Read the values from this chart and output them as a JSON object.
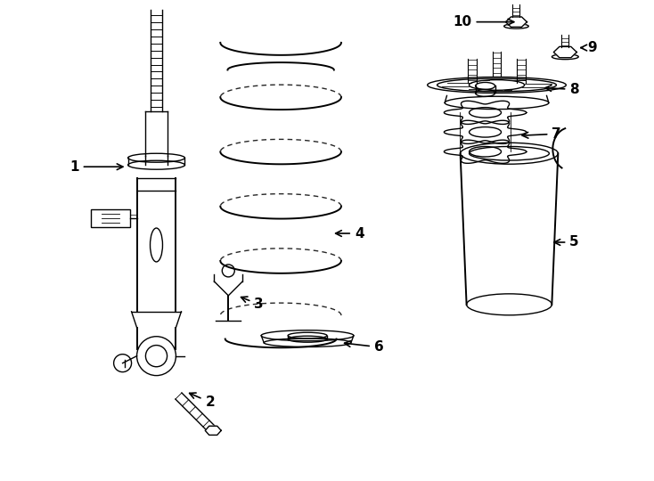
{
  "bg_color": "#ffffff",
  "line_color": "#000000",
  "lw": 1.0,
  "lw2": 1.4,
  "figsize": [
    7.34,
    5.4
  ],
  "dpi": 100
}
